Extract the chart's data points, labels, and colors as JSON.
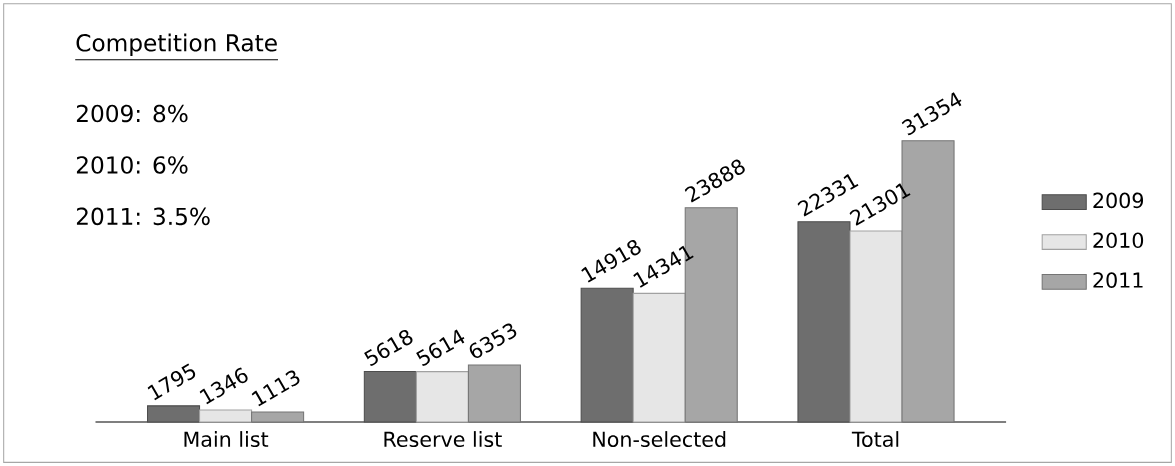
{
  "chart_data": {
    "type": "bar",
    "categories": [
      "Main list",
      "Reserve list",
      "Non-selected",
      "Total"
    ],
    "series": [
      {
        "name": "2009",
        "color": "#6e6e6e",
        "values": [
          1795,
          5618,
          14918,
          22331
        ]
      },
      {
        "name": "2010",
        "color": "#e6e6e6",
        "values": [
          1346,
          5614,
          14341,
          21301
        ]
      },
      {
        "name": "2011",
        "color": "#a6a6a6",
        "values": [
          1113,
          6353,
          23888,
          31354
        ]
      }
    ],
    "data_labels": true,
    "legend": "right",
    "annotations": [
      "Competition Rate",
      "2009: 8%",
      "2010: 6%",
      "2011: 3.5%"
    ]
  }
}
